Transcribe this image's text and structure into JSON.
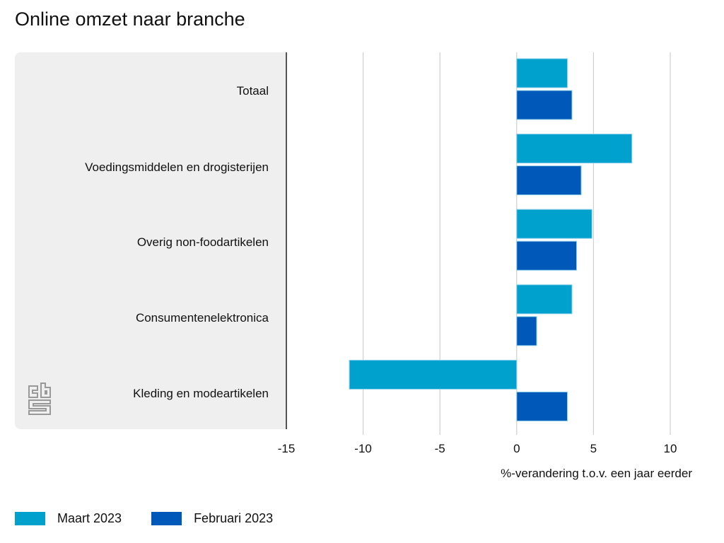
{
  "title": "Online omzet naar branche",
  "chart_data": {
    "type": "bar",
    "orientation": "horizontal",
    "title": "Online omzet naar branche",
    "xlabel": "%-verandering t.o.v. een jaar eerder",
    "ylabel": "",
    "xlim": [
      -15,
      10
    ],
    "xticks": [
      -15,
      -10,
      -5,
      0,
      5,
      10
    ],
    "xtick_labels": [
      "-15",
      "-10",
      "-5",
      "0",
      "5",
      "10"
    ],
    "grid": true,
    "legend_position": "bottom-left",
    "categories": [
      "Totaal",
      "Voedingsmiddelen en drogisterijen",
      "Overig non-foodartikelen",
      "Consumentenelektronica",
      "Kleding en modeartikelen"
    ],
    "series": [
      {
        "name": "Maart 2023",
        "color": "#00a1cd",
        "values": [
          3.3,
          7.5,
          4.9,
          3.6,
          -10.9
        ]
      },
      {
        "name": "Februari 2023",
        "color": "#0058b8",
        "values": [
          3.6,
          4.2,
          3.9,
          1.3,
          3.3
        ]
      }
    ]
  },
  "logo": "cbs-logo"
}
